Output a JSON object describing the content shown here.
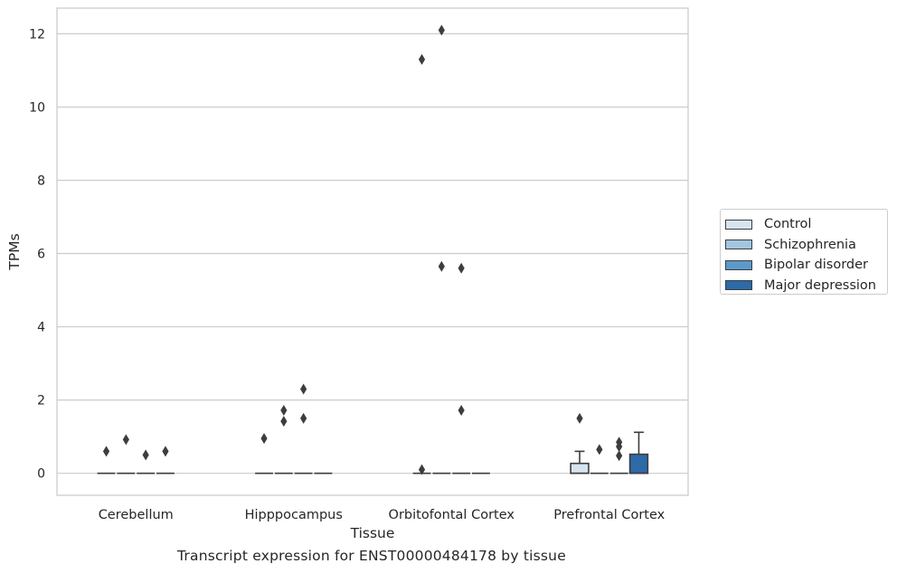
{
  "caption": "Transcript expression for ENST00000484178 by tissue",
  "chart_data": {
    "type": "box",
    "xlabel": "Tissue",
    "ylabel": "TPMs",
    "ylim": [
      -0.6,
      12.7
    ],
    "yticks": [
      0,
      2,
      4,
      6,
      8,
      10,
      12
    ],
    "grid": "y",
    "legend_position": "right",
    "categories": [
      "Cerebellum",
      "Hipppocampus",
      "Orbitofontal Cortex",
      "Prefrontal Cortex"
    ],
    "series": [
      {
        "name": "Control",
        "color": "#d6e4f0",
        "boxes": [
          {
            "q1": 0,
            "median": 0,
            "q3": 0,
            "whisker_low": 0,
            "whisker_high": 0,
            "outliers": [
              0.6
            ]
          },
          {
            "q1": 0,
            "median": 0,
            "q3": 0,
            "whisker_low": 0,
            "whisker_high": 0,
            "outliers": [
              0.95
            ]
          },
          {
            "q1": 0,
            "median": 0,
            "q3": 0,
            "whisker_low": 0,
            "whisker_high": 0,
            "outliers": [
              11.3,
              0.1
            ]
          },
          {
            "q1": 0,
            "median": 0,
            "q3": 0.27,
            "whisker_low": 0,
            "whisker_high": 0.6,
            "outliers": [
              1.5
            ]
          }
        ]
      },
      {
        "name": "Schizophrenia",
        "color": "#a2c6df",
        "boxes": [
          {
            "q1": 0,
            "median": 0,
            "q3": 0,
            "whisker_low": 0,
            "whisker_high": 0,
            "outliers": [
              0.92
            ]
          },
          {
            "q1": 0,
            "median": 0,
            "q3": 0,
            "whisker_low": 0,
            "whisker_high": 0,
            "outliers": [
              1.72,
              1.42
            ]
          },
          {
            "q1": 0,
            "median": 0,
            "q3": 0,
            "whisker_low": 0,
            "whisker_high": 0,
            "outliers": [
              12.1,
              5.65
            ]
          },
          {
            "q1": 0,
            "median": 0,
            "q3": 0,
            "whisker_low": 0,
            "whisker_high": 0,
            "outliers": [
              0.65
            ]
          }
        ]
      },
      {
        "name": "Bipolar disorder",
        "color": "#5b9ac8",
        "boxes": [
          {
            "q1": 0,
            "median": 0,
            "q3": 0,
            "whisker_low": 0,
            "whisker_high": 0,
            "outliers": [
              0.5
            ]
          },
          {
            "q1": 0,
            "median": 0,
            "q3": 0,
            "whisker_low": 0,
            "whisker_high": 0,
            "outliers": [
              2.3,
              1.5
            ]
          },
          {
            "q1": 0,
            "median": 0,
            "q3": 0,
            "whisker_low": 0,
            "whisker_high": 0,
            "outliers": [
              5.6,
              1.72
            ]
          },
          {
            "q1": 0,
            "median": 0,
            "q3": 0,
            "whisker_low": 0,
            "whisker_high": 0,
            "outliers": [
              0.85,
              0.73,
              0.48
            ]
          }
        ]
      },
      {
        "name": "Major depression",
        "color": "#2c6aa8",
        "boxes": [
          {
            "q1": 0,
            "median": 0,
            "q3": 0,
            "whisker_low": 0,
            "whisker_high": 0,
            "outliers": [
              0.6
            ]
          },
          {
            "q1": 0,
            "median": 0,
            "q3": 0,
            "whisker_low": 0,
            "whisker_high": 0,
            "outliers": []
          },
          {
            "q1": 0,
            "median": 0,
            "q3": 0,
            "whisker_low": 0,
            "whisker_high": 0,
            "outliers": []
          },
          {
            "q1": 0,
            "median": 0,
            "q3": 0.52,
            "whisker_low": 0,
            "whisker_high": 1.12,
            "outliers": []
          }
        ]
      }
    ]
  }
}
